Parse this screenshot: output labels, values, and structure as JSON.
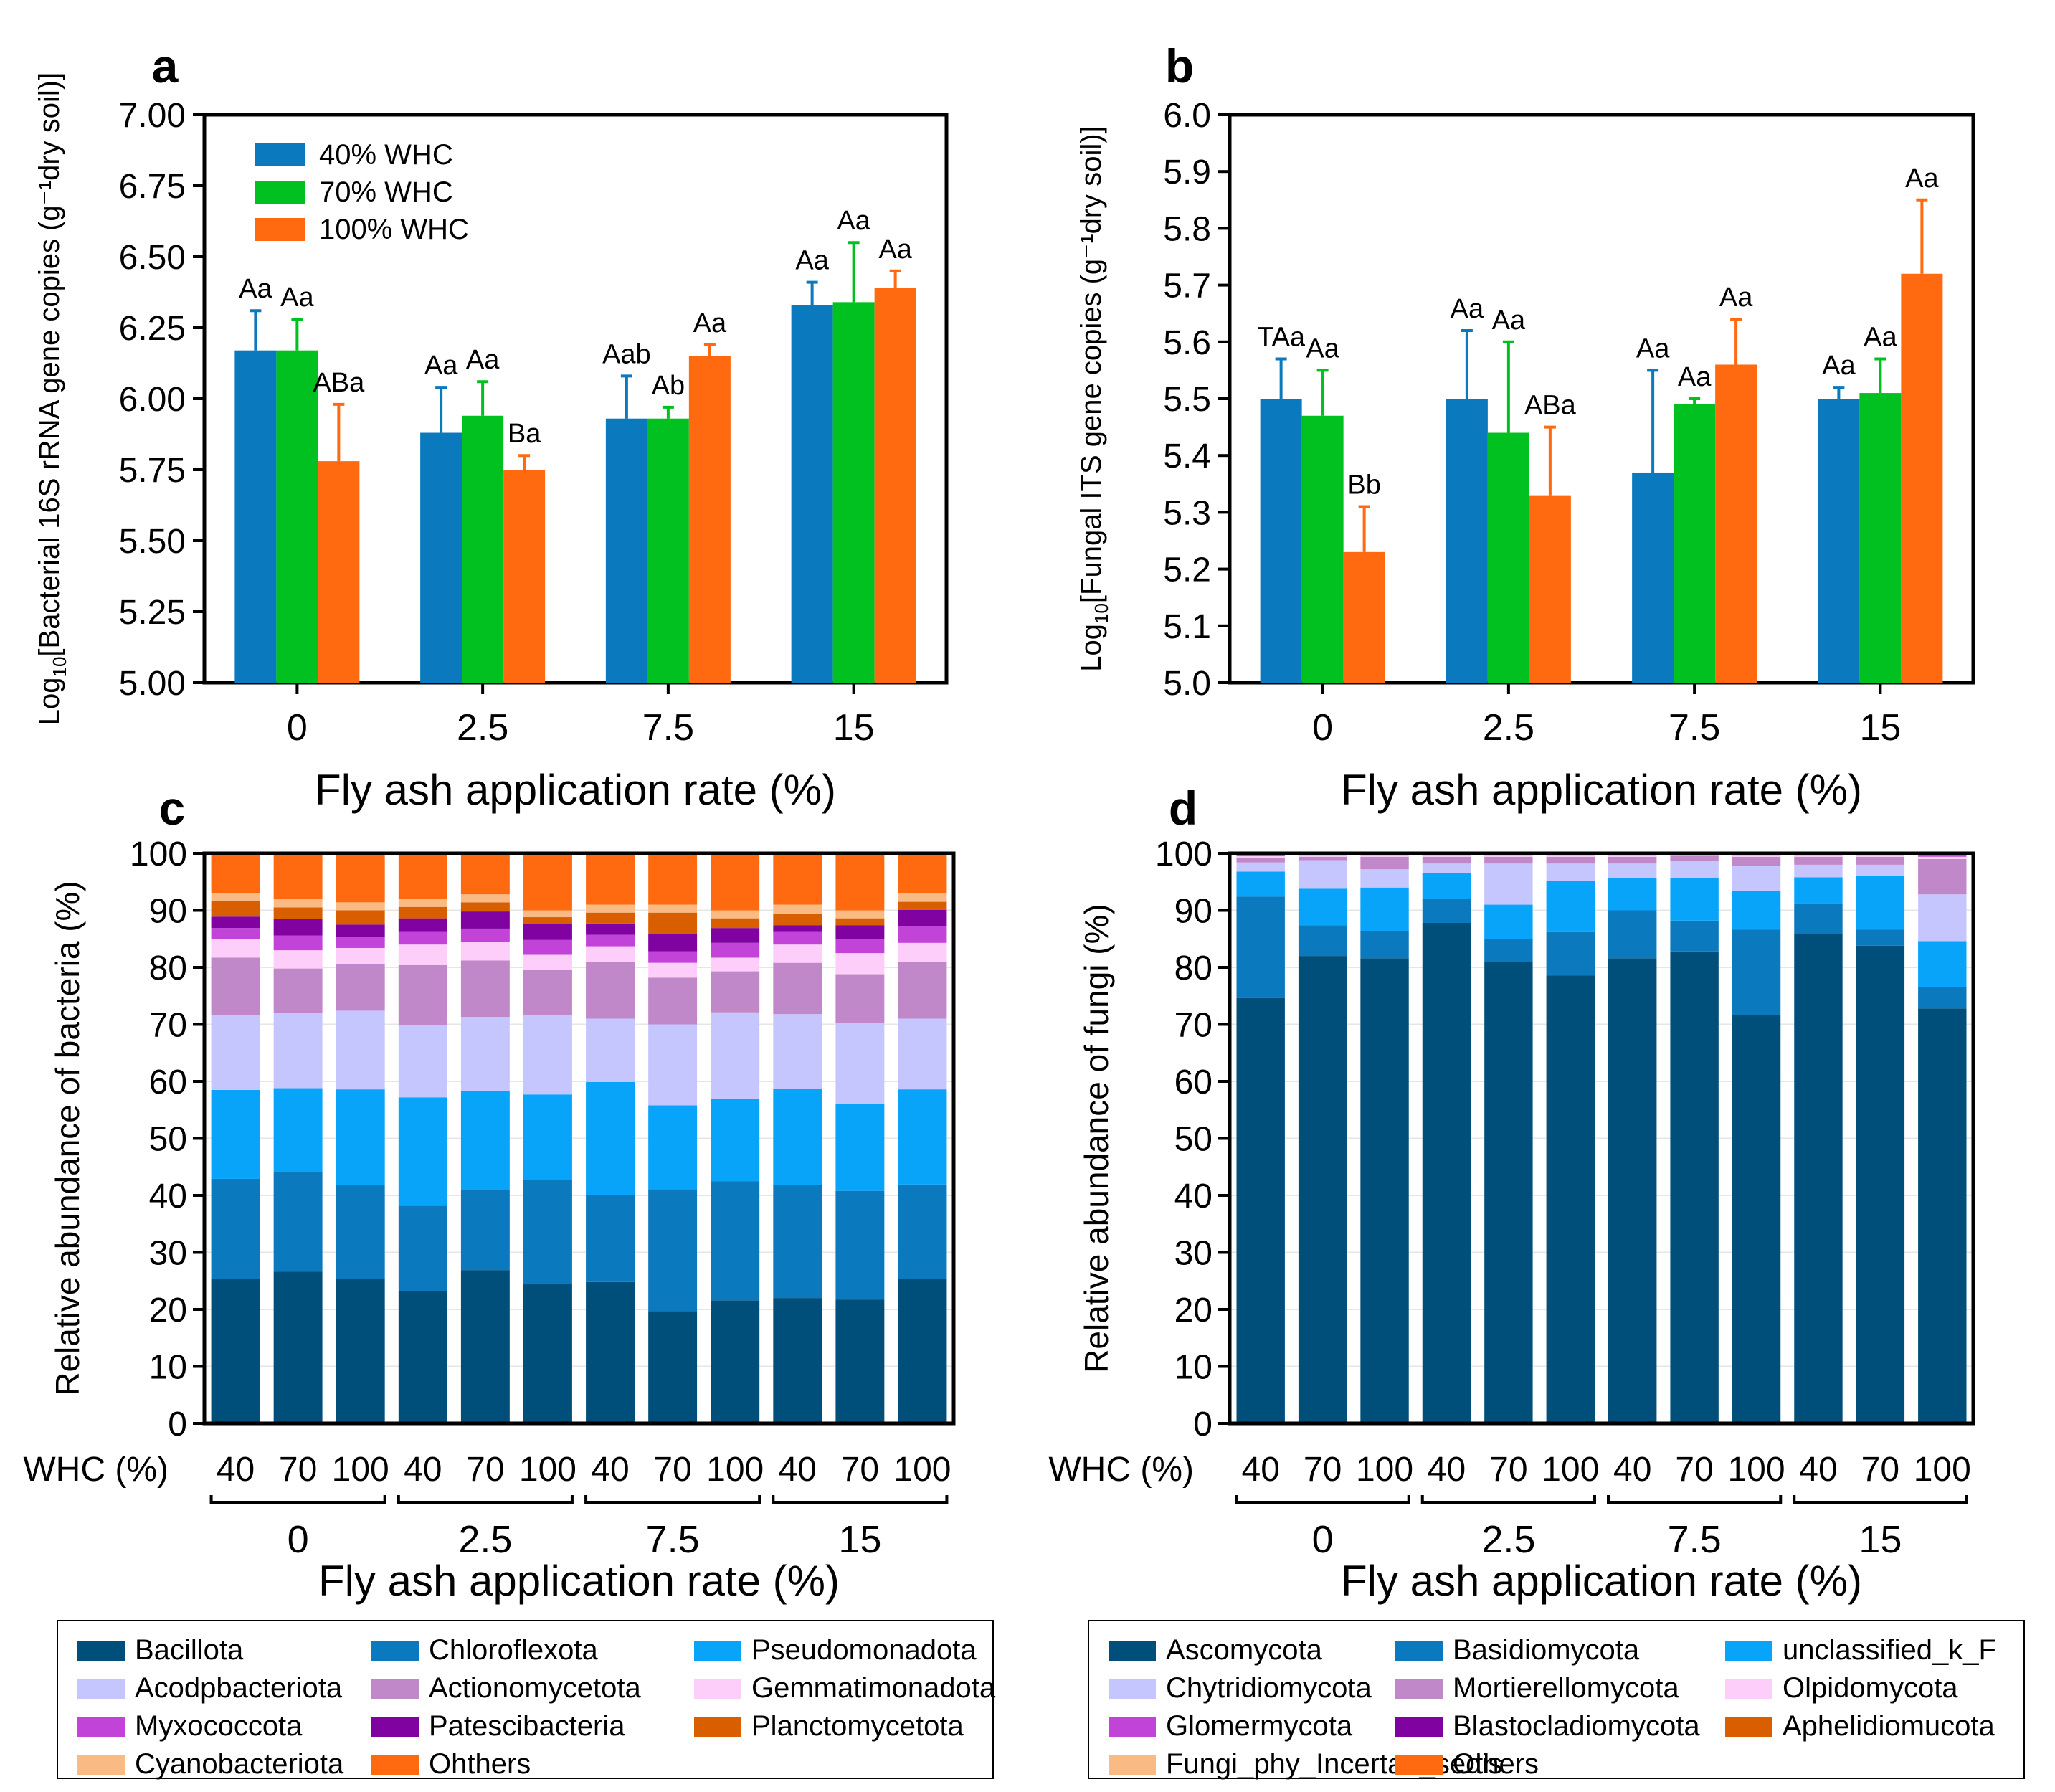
{
  "colors": {
    "whc40": "#0a79bd",
    "whc70": "#00c11f",
    "whc100": "#ff6a10",
    "bacteria": [
      "#004f7a",
      "#0a79bd",
      "#08a4fa",
      "#c6c6ff",
      "#c088c8",
      "#fdcefa",
      "#c243d8",
      "#7f02a1",
      "#d95e00",
      "#f9bb83",
      "#ff6a10"
    ],
    "fungi": [
      "#004f7a",
      "#0a79bd",
      "#08a4fa",
      "#c6c6ff",
      "#c088c8",
      "#fdcefa",
      "#c243d8",
      "#7f02a1",
      "#d95e00",
      "#f9bb83",
      "#ff6a10"
    ]
  },
  "chart_data": [
    {
      "panel": "a",
      "type": "bar",
      "title": "",
      "xlabel": "Fly ash application rate (%)",
      "ylabel_prefix": "Log",
      "ylabel_sub": "10",
      "ylabel_rest": "[Bacterial 16S rRNA gene copies (g⁻¹dry soil)]",
      "ylim": [
        5.0,
        7.0
      ],
      "yticks": [
        "5.00",
        "5.25",
        "5.50",
        "5.75",
        "6.00",
        "6.25",
        "6.50",
        "6.75",
        "7.00"
      ],
      "categories": [
        "0",
        "2.5",
        "7.5",
        "15"
      ],
      "legend_position": "top-left",
      "series": [
        {
          "name": "40% WHC",
          "values": [
            6.17,
            5.88,
            5.93,
            6.33
          ],
          "errors": [
            0.14,
            0.16,
            0.15,
            0.08
          ],
          "labels": [
            "Aa",
            "Aa",
            "Aab",
            "Aa"
          ]
        },
        {
          "name": "70% WHC",
          "values": [
            6.17,
            5.94,
            5.93,
            6.34
          ],
          "errors": [
            0.11,
            0.12,
            0.04,
            0.21
          ],
          "labels": [
            "Aa",
            "Aa",
            "Ab",
            "Aa"
          ]
        },
        {
          "name": "100% WHC",
          "values": [
            5.78,
            5.75,
            6.15,
            6.39
          ],
          "errors": [
            0.2,
            0.05,
            0.04,
            0.06
          ],
          "labels": [
            "ABa",
            "Ba",
            "Aa",
            "Aa"
          ]
        }
      ]
    },
    {
      "panel": "b",
      "type": "bar",
      "title": "",
      "xlabel": "Fly ash application rate (%)",
      "ylabel_prefix": "Log",
      "ylabel_sub": "10",
      "ylabel_rest": "[Fungal ITS gene copies (g⁻¹dry soil)]",
      "ylim": [
        5.0,
        6.0
      ],
      "yticks": [
        "5.0",
        "5.1",
        "5.2",
        "5.3",
        "5.4",
        "5.5",
        "5.6",
        "5.7",
        "5.8",
        "5.9",
        "6.0"
      ],
      "categories": [
        "0",
        "2.5",
        "7.5",
        "15"
      ],
      "series": [
        {
          "name": "40% WHC",
          "values": [
            5.5,
            5.5,
            5.37,
            5.5
          ],
          "errors": [
            0.07,
            0.12,
            0.18,
            0.02
          ],
          "labels": [
            "TAa",
            "Aa",
            "Aa",
            "Aa"
          ]
        },
        {
          "name": "70% WHC",
          "values": [
            5.47,
            5.44,
            5.49,
            5.51
          ],
          "errors": [
            0.08,
            0.16,
            0.01,
            0.06
          ],
          "labels": [
            "Aa",
            "Aa",
            "Aa",
            "Aa"
          ]
        },
        {
          "name": "100% WHC",
          "values": [
            5.23,
            5.33,
            5.56,
            5.72
          ],
          "errors": [
            0.08,
            0.12,
            0.08,
            0.13
          ],
          "labels": [
            "Bb",
            "ABa",
            "Aa",
            "Aa"
          ]
        }
      ]
    },
    {
      "panel": "c",
      "type": "stacked-bar",
      "ylabel": "Relative abundance of bacteria (%)",
      "xlabel": "Fly ash application rate (%)",
      "whc_label": "WHC (%)",
      "ylim": [
        0,
        100
      ],
      "yticks": [
        "0",
        "10",
        "20",
        "30",
        "40",
        "50",
        "60",
        "70",
        "80",
        "90",
        "100"
      ],
      "bar_labels": [
        "40",
        "70",
        "100",
        "40",
        "70",
        "100",
        "40",
        "70",
        "100",
        "40",
        "70",
        "100"
      ],
      "groups": [
        "0",
        "2.5",
        "7.5",
        "15"
      ],
      "legend": [
        "Bacillota",
        "Chloroflexota",
        "Pseudomonadota",
        "Acodpbacteriota",
        "Actionomycetota",
        "Gemmatimonadota",
        "Myxococcota",
        "Patescibacteria",
        "Planctomycetota",
        "Cyanobacteriota",
        "Ohthers"
      ],
      "stacks": [
        [
          25.3,
          17.6,
          15.6,
          13.1,
          10.1,
          3.2,
          2.0,
          2.0,
          2.7,
          1.4,
          7.0
        ],
        [
          26.6,
          17.6,
          14.6,
          13.2,
          7.8,
          3.2,
          2.6,
          2.9,
          2.0,
          1.5,
          8.0
        ],
        [
          25.4,
          16.4,
          16.8,
          13.8,
          8.2,
          2.8,
          2.0,
          2.1,
          2.5,
          1.4,
          8.6
        ],
        [
          23.2,
          15.0,
          19.0,
          12.6,
          10.6,
          3.6,
          2.2,
          2.4,
          2.0,
          1.4,
          8.0
        ],
        [
          26.9,
          14.1,
          17.3,
          13.0,
          9.9,
          3.2,
          2.4,
          3.0,
          1.6,
          1.4,
          7.2
        ],
        [
          24.4,
          18.3,
          15.0,
          14.0,
          7.8,
          2.7,
          2.6,
          2.8,
          1.2,
          1.2,
          10.0
        ],
        [
          24.8,
          15.2,
          19.9,
          11.1,
          10.0,
          2.7,
          2.0,
          2.0,
          1.9,
          1.4,
          9.0
        ],
        [
          19.7,
          21.4,
          14.7,
          14.2,
          8.2,
          2.6,
          2.0,
          3.0,
          3.8,
          1.4,
          9.0
        ],
        [
          21.6,
          20.9,
          14.4,
          15.2,
          7.2,
          2.4,
          2.6,
          2.6,
          1.7,
          1.4,
          10.0
        ],
        [
          22.0,
          19.8,
          16.9,
          13.1,
          9.0,
          3.2,
          2.2,
          1.2,
          2.0,
          1.6,
          9.0
        ],
        [
          21.7,
          19.1,
          15.3,
          14.1,
          8.6,
          3.7,
          2.5,
          2.4,
          1.2,
          1.4,
          10.0
        ],
        [
          25.4,
          16.5,
          16.7,
          12.4,
          9.9,
          3.4,
          2.9,
          2.9,
          1.4,
          1.5,
          7.0
        ]
      ]
    },
    {
      "panel": "d",
      "type": "stacked-bar",
      "ylabel": "Relative abundance of fungi (%)",
      "xlabel": "Fly ash application rate (%)",
      "whc_label": "WHC (%)",
      "ylim": [
        0,
        100
      ],
      "yticks": [
        "0",
        "10",
        "20",
        "30",
        "40",
        "50",
        "60",
        "70",
        "80",
        "90",
        "100"
      ],
      "bar_labels": [
        "40",
        "70",
        "100",
        "40",
        "70",
        "100",
        "40",
        "70",
        "100",
        "40",
        "70",
        "100"
      ],
      "groups": [
        "0",
        "2.5",
        "7.5",
        "15"
      ],
      "legend": [
        "Ascomycota",
        "Basidiomycota",
        "unclassified_k_F",
        "Chytridiomycota",
        "Mortierellomycota",
        "Olpidomycota",
        "Glomermycota",
        "Blastocladiomycota",
        "Aphelidiomucota",
        "Fungi_phy_Incertae_sedis",
        "Others"
      ],
      "stacks": [
        [
          74.6,
          17.8,
          4.4,
          1.6,
          0.8,
          0.3,
          0.2,
          0.1,
          0.1,
          0.1,
          0.0
        ],
        [
          82.0,
          5.4,
          6.4,
          5.0,
          0.6,
          0.2,
          0.2,
          0.1,
          0.1,
          0.0,
          0.0
        ],
        [
          81.6,
          4.8,
          7.6,
          3.2,
          2.2,
          0.2,
          0.2,
          0.1,
          0.1,
          0.0,
          0.0
        ],
        [
          87.8,
          4.2,
          4.6,
          1.6,
          1.2,
          0.2,
          0.2,
          0.1,
          0.1,
          0.0,
          0.0
        ],
        [
          81.0,
          4.0,
          6.0,
          7.2,
          1.2,
          0.2,
          0.2,
          0.1,
          0.1,
          0.0,
          0.0
        ],
        [
          78.6,
          7.6,
          9.0,
          3.0,
          1.2,
          0.2,
          0.2,
          0.1,
          0.1,
          0.0,
          0.0
        ],
        [
          81.6,
          8.4,
          5.6,
          2.6,
          1.2,
          0.2,
          0.2,
          0.1,
          0.1,
          0.0,
          0.0
        ],
        [
          82.8,
          5.4,
          7.4,
          3.0,
          1.0,
          0.2,
          0.2,
          0.1,
          0.1,
          0.0,
          0.0
        ],
        [
          71.6,
          15.0,
          6.8,
          4.4,
          1.6,
          0.2,
          0.2,
          0.1,
          0.1,
          0.0,
          0.0
        ],
        [
          86.0,
          5.2,
          4.6,
          2.2,
          1.4,
          0.2,
          0.2,
          0.1,
          0.1,
          0.0,
          0.0
        ],
        [
          83.8,
          2.8,
          9.4,
          2.0,
          1.4,
          0.2,
          0.2,
          0.1,
          0.1,
          0.0,
          0.0
        ],
        [
          72.8,
          3.8,
          8.0,
          8.2,
          6.2,
          0.4,
          0.2,
          0.1,
          0.1,
          0.2,
          0.0
        ]
      ]
    }
  ]
}
